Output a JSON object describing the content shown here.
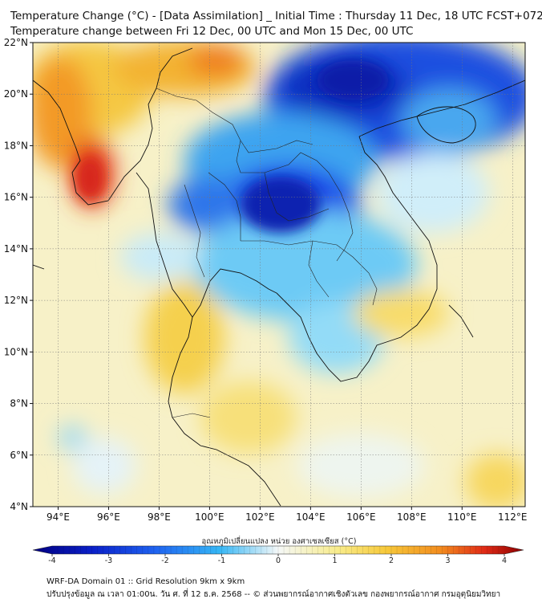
{
  "title": {
    "line1": "Temperature Change (°C) - [Data Assimilation] _ Initial Time : Thursday 11 Dec, 18 UTC FCST+072",
    "line2": "Temperature change between Fri 12 Dec, 00 UTC and Mon 15 Dec, 00 UTC"
  },
  "map": {
    "lat_labels": [
      "22°N",
      "20°N",
      "18°N",
      "16°N",
      "14°N",
      "12°N",
      "10°N",
      "8°N",
      "6°N",
      "4°N"
    ],
    "lon_labels": [
      "94°E",
      "96°E",
      "98°E",
      "100°E",
      "102°E",
      "104°E",
      "106°E",
      "108°E",
      "110°E",
      "112°E"
    ],
    "gridlines": true
  },
  "colorbar": {
    "label": "อุณหภูมิเปลี่ยนแปลง หน่วย องศาเซลเซียส (°C)",
    "ticks": [
      "-4",
      "-3",
      "-2",
      "-1",
      "0",
      "1",
      "2",
      "3",
      "4"
    ],
    "colors": {
      "cold_max": "#000080",
      "cold": "#1d4ee8",
      "cool": "#4fc3f7",
      "neutral": "#f5f8f8",
      "warm": "#f7e27a",
      "hot": "#f28c1e",
      "hot_max": "#8b0000"
    }
  },
  "footer": {
    "line1": "WRF-DA Domain 01 :: Grid Resolution 9km x 9km",
    "line2": "ปรับปรุงข้อมูล ณ เวลา 01:00น. วัน ศ. ที่ 12 ธ.ค. 2568 -- © ส่วนพยากรณ์อากาศเชิงตัวเลข กองพยากรณ์อากาศ กรมอุตุนิยมวิทยา"
  }
}
